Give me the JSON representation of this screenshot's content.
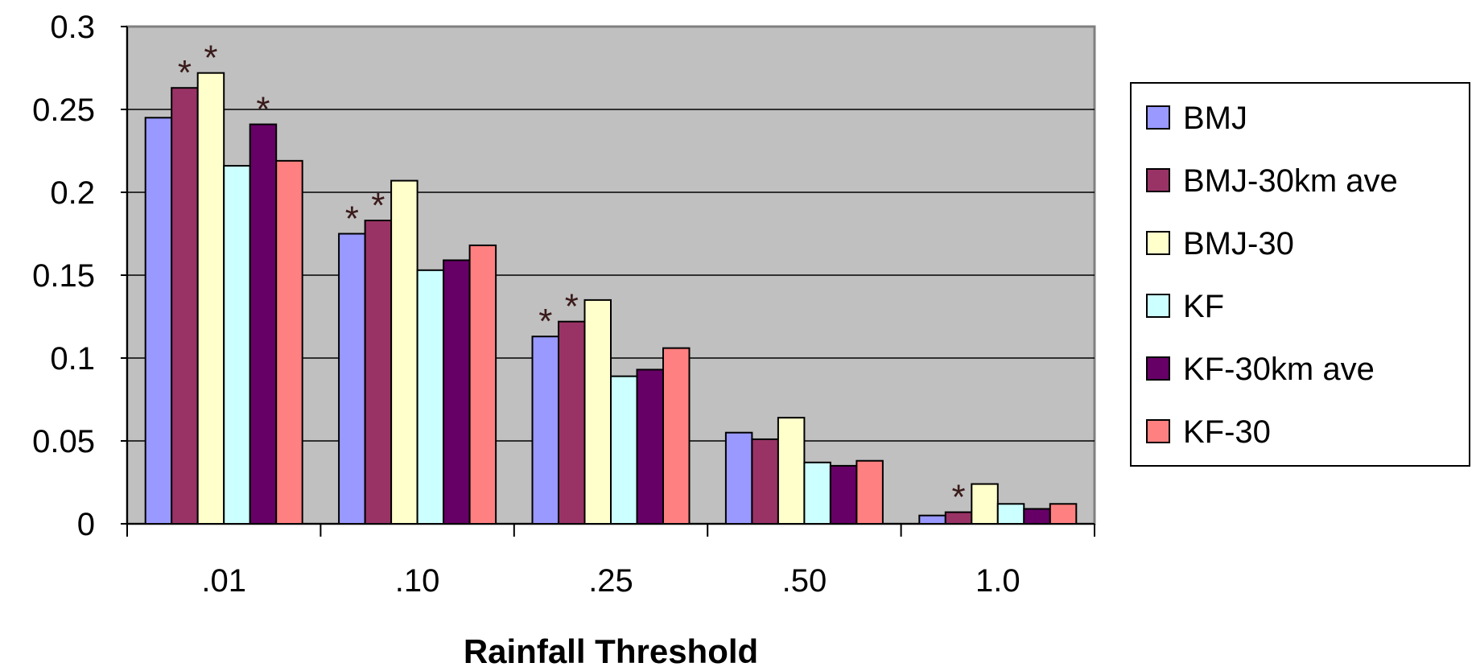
{
  "chart_data": {
    "type": "bar",
    "title": "",
    "xlabel": "Rainfall Threshold",
    "ylabel": "",
    "ylim": [
      0,
      0.3
    ],
    "yticks": [
      "0",
      "0.05",
      "0.1",
      "0.15",
      "0.2",
      "0.25",
      "0.3"
    ],
    "categories": [
      ".01",
      ".10",
      ".25",
      ".50",
      "1.0"
    ],
    "grid": true,
    "legend_position": "right",
    "plot_background": "#c0c0c0",
    "series": [
      {
        "name": "BMJ",
        "color": "#9999ff",
        "values": [
          0.245,
          0.175,
          0.113,
          0.055,
          0.005
        ]
      },
      {
        "name": "BMJ-30km ave",
        "color": "#993366",
        "values": [
          0.263,
          0.183,
          0.122,
          0.051,
          0.007
        ]
      },
      {
        "name": "BMJ-30",
        "color": "#ffffcc",
        "values": [
          0.272,
          0.207,
          0.135,
          0.064,
          0.024
        ]
      },
      {
        "name": "KF",
        "color": "#ccffff",
        "values": [
          0.216,
          0.153,
          0.089,
          0.037,
          0.012
        ]
      },
      {
        "name": "KF-30km ave",
        "color": "#660066",
        "values": [
          0.241,
          0.159,
          0.093,
          0.035,
          0.009
        ]
      },
      {
        "name": "KF-30",
        "color": "#ff8080",
        "values": [
          0.219,
          0.168,
          0.106,
          0.038,
          0.012
        ]
      }
    ],
    "annotations": [
      {
        "text": "*",
        "category": ".01",
        "series": "BMJ-30km ave"
      },
      {
        "text": "*",
        "category": ".01",
        "series": "BMJ-30"
      },
      {
        "text": "*",
        "category": ".01",
        "series": "KF-30km ave"
      },
      {
        "text": "*",
        "category": ".10",
        "series": "BMJ"
      },
      {
        "text": "*",
        "category": ".10",
        "series": "BMJ-30km ave"
      },
      {
        "text": "*",
        "category": ".25",
        "series": "BMJ"
      },
      {
        "text": "*",
        "category": ".25",
        "series": "BMJ-30km ave"
      },
      {
        "text": "*",
        "category": "1.0",
        "series": "BMJ-30km ave"
      }
    ]
  }
}
